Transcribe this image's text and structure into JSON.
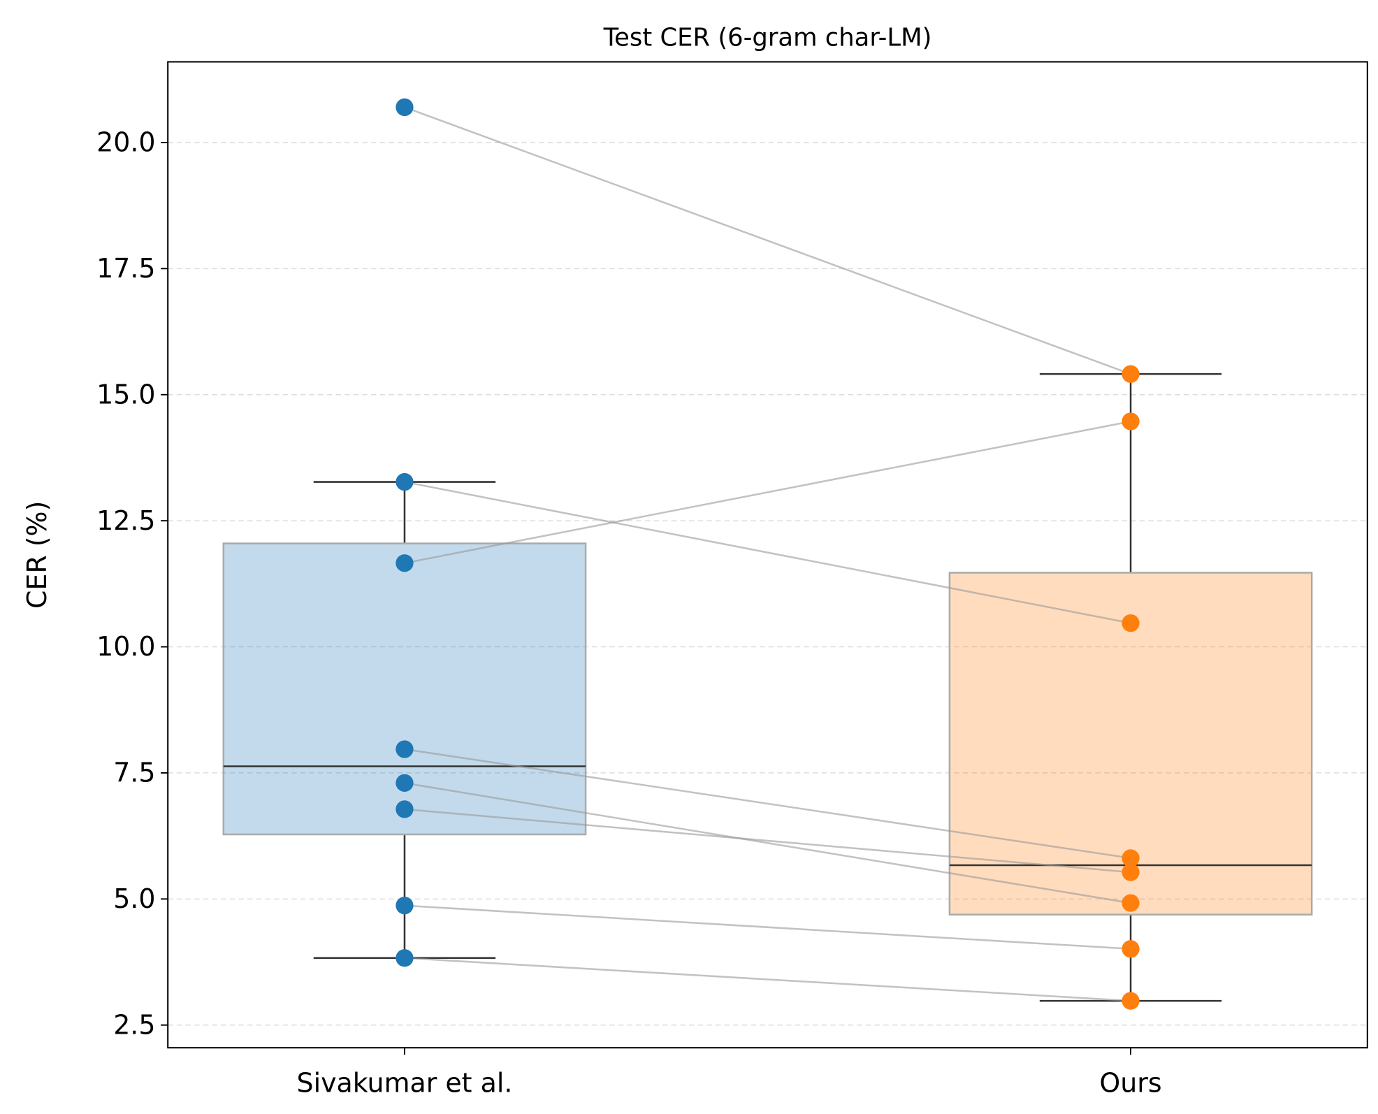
{
  "chart_data": {
    "type": "box",
    "title": "Test CER (6-gram char-LM)",
    "xlabel": "",
    "ylabel": "CER (%)",
    "categories": [
      "Sivakumar et al.",
      "Ours"
    ],
    "ylim": [
      2.05,
      21.6
    ],
    "yticks": [
      "2.5",
      "5.0",
      "7.5",
      "10.0",
      "12.5",
      "15.0",
      "17.5",
      "20.0"
    ],
    "grid": "y-dashed",
    "colors": {
      "box": [
        "#1f77b4",
        "#ff7f0e"
      ],
      "pair_line": "#999999",
      "median": "#333333"
    },
    "boxes": [
      {
        "q1": 6.28,
        "median": 7.63,
        "q3": 12.05,
        "whisker_low": 3.83,
        "whisker_high": 13.27
      },
      {
        "q1": 4.69,
        "median": 5.67,
        "q3": 11.47,
        "whisker_low": 2.98,
        "whisker_high": 15.41
      }
    ],
    "pairs": [
      [
        20.7,
        15.41
      ],
      [
        11.66,
        14.47
      ],
      [
        13.27,
        10.47
      ],
      [
        7.97,
        5.81
      ],
      [
        7.3,
        4.92
      ],
      [
        6.78,
        5.53
      ],
      [
        4.87,
        4.01
      ],
      [
        3.83,
        2.98
      ]
    ]
  }
}
